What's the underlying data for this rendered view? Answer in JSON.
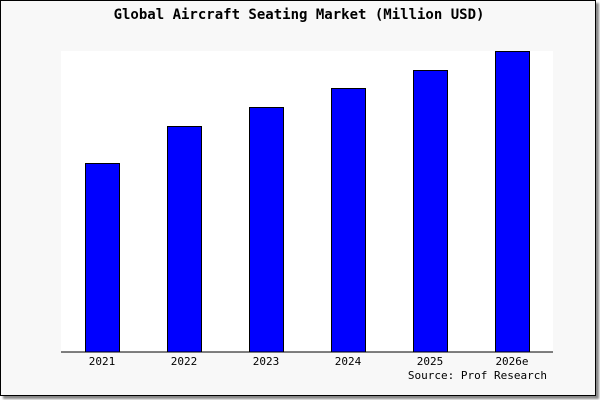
{
  "chart_data": {
    "type": "bar",
    "title": "Global Aircraft Seating Market (Million USD)",
    "categories": [
      "2021",
      "2022",
      "2023",
      "2024",
      "2025",
      "2026e"
    ],
    "values": [
      189,
      226,
      245,
      264,
      282,
      301
    ],
    "value_note_visible": false,
    "ylim": [
      0,
      301
    ],
    "grid": false,
    "bar_color": "#0000ff",
    "source": "Source: Prof Research"
  }
}
